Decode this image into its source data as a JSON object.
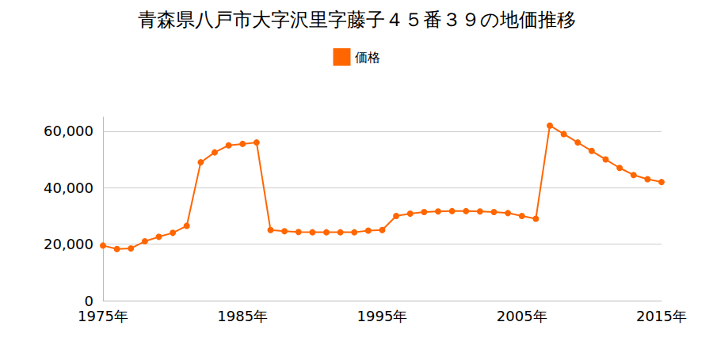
{
  "chart_data": {
    "type": "line",
    "title": "青森県八戸市大字沢里字藤子４５番３９の地価推移",
    "x": [
      1975,
      1976,
      1977,
      1978,
      1979,
      1980,
      1981,
      1982,
      1983,
      1984,
      1985,
      1986,
      1987,
      1988,
      1989,
      1990,
      1991,
      1992,
      1993,
      1994,
      1995,
      1996,
      1997,
      1998,
      1999,
      2000,
      2001,
      2002,
      2003,
      2004,
      2005,
      2006,
      2007,
      2008,
      2009,
      2010,
      2011,
      2012,
      2013,
      2014,
      2015
    ],
    "series": [
      {
        "name": "価格",
        "color": "#ff6600",
        "marker": "circle",
        "values": [
          19500,
          18300,
          18500,
          21000,
          22600,
          24000,
          26500,
          49000,
          52500,
          55000,
          55500,
          56000,
          25000,
          24600,
          24300,
          24200,
          24200,
          24200,
          24200,
          24800,
          25000,
          30000,
          30800,
          31400,
          31600,
          31700,
          31700,
          31600,
          31400,
          31000,
          30000,
          29000,
          62000,
          59000,
          56000,
          53000,
          50000,
          47000,
          44500,
          43000,
          42000
        ]
      }
    ],
    "xlim": [
      1975,
      2015
    ],
    "xticks": [
      {
        "value": 1975,
        "label": "1975年"
      },
      {
        "value": 1985,
        "label": "1985年"
      },
      {
        "value": 1995,
        "label": "1995年"
      },
      {
        "value": 2005,
        "label": "2005年"
      },
      {
        "value": 2015,
        "label": "2015年"
      }
    ],
    "ylim": [
      0,
      65000
    ],
    "yticks": [
      0,
      {
        "value": 20000,
        "label": "20,000"
      },
      {
        "value": 40000,
        "label": "40,000"
      },
      {
        "value": 60000,
        "label": "60,000"
      }
    ],
    "grid": true,
    "legend": "top"
  }
}
